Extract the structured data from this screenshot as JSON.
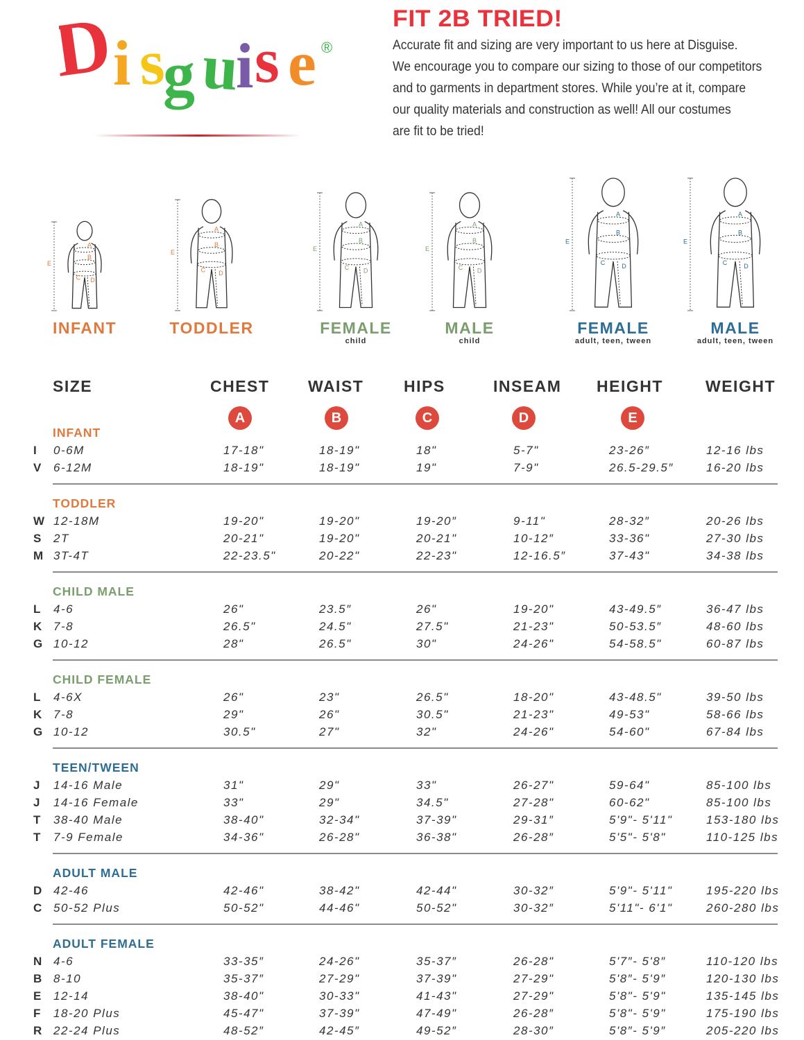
{
  "brand": {
    "logo_text": "Disguise",
    "registered": "®",
    "logo_letter_colors": [
      "#e8323c",
      "#f5a623",
      "#f5c518",
      "#3db54a",
      "#3db54a",
      "#7a5ba8",
      "#e8323c",
      "#f28c28"
    ]
  },
  "header": {
    "title": "FIT 2B TRIED!",
    "intro_lines": [
      "Accurate fit and sizing are very important to us here at Disguise.",
      "We encourage you to compare our sizing to those of our competitors",
      "and to garments in department stores. While you’re at it, compare",
      "our quality materials and construction as well! All our costumes",
      "are fit to be tried!"
    ]
  },
  "figures": [
    {
      "label": "INFANT",
      "sub": "",
      "color": "#e07a3c",
      "icon": "infant-figure"
    },
    {
      "label": "TODDLER",
      "sub": "",
      "color": "#e07a3c",
      "icon": "toddler-figure"
    },
    {
      "label": "FEMALE",
      "sub": "child",
      "color": "#7a9e6e",
      "icon": "child-female-figure"
    },
    {
      "label": "MALE",
      "sub": "child",
      "color": "#7a9e6e",
      "icon": "child-male-figure"
    },
    {
      "label": "FEMALE",
      "sub": "adult, teen, tween",
      "color": "#2e6e96",
      "icon": "adult-female-figure"
    },
    {
      "label": "MALE",
      "sub": "adult, teen, tween",
      "color": "#2e6e96",
      "icon": "adult-male-figure"
    }
  ],
  "columns": [
    "SIZE",
    "CHEST",
    "WAIST",
    "HIPS",
    "INSEAM",
    "HEIGHT",
    "WEIGHT"
  ],
  "badges": [
    "A",
    "B",
    "C",
    "D",
    "E"
  ],
  "badge_color": "#dd4a3d",
  "sections": [
    {
      "title": "INFANT",
      "color": "#e07a3c",
      "rows": [
        [
          "I",
          "0-6M",
          "17-18\"",
          "18-19\"",
          "18\"",
          "5-7\"",
          "23-26″",
          "12-16 lbs"
        ],
        [
          "V",
          "6-12M",
          "18-19\"",
          "18-19\"",
          "19\"",
          "7-9\"",
          "26.5-29.5″",
          "16-20 lbs"
        ]
      ]
    },
    {
      "title": "TODDLER",
      "color": "#e07a3c",
      "rows": [
        [
          "W",
          "12-18M",
          "19-20\"",
          "19-20\"",
          "19-20″",
          "9-11\"",
          "28-32″",
          "20-26 lbs"
        ],
        [
          "S",
          "2T",
          "20-21\"",
          "19-20\"",
          "20-21\"",
          "10-12″",
          "33-36\"",
          "27-30 lbs"
        ],
        [
          "M",
          "3T-4T",
          "22-23.5\"",
          "20-22\"",
          "22-23\"",
          "12-16.5″",
          "37-43\"",
          "34-38 lbs"
        ]
      ]
    },
    {
      "title": "CHILD MALE",
      "color": "#7a9e6e",
      "rows": [
        [
          "L",
          "4-6",
          " 26\"",
          " 23.5″",
          " 26\"",
          "19-20\"",
          "43-49.5″",
          "36-47 lbs"
        ],
        [
          "K",
          "7-8",
          " 26.5\"",
          " 24.5\"",
          " 27.5\"",
          "21-23\"",
          "50-53.5″",
          "48-60 lbs"
        ],
        [
          "G",
          "10-12",
          " 28\"",
          " 26.5\"",
          " 30\"",
          "24-26\"",
          "54-58.5\"",
          "60-87 lbs"
        ]
      ]
    },
    {
      "title": "CHILD FEMALE",
      "color": "#7a9e6e",
      "rows": [
        [
          "L",
          "4-6X",
          " 26\"",
          " 23\"",
          " 26.5\"",
          "18-20\"",
          "43-48.5\"",
          "39-50 lbs"
        ],
        [
          "K",
          "7-8",
          " 29\"",
          " 26\"",
          " 30.5\"",
          "21-23\"",
          "49-53\"",
          "58-66 lbs"
        ],
        [
          "G",
          "10-12",
          "30.5\"",
          " 27\"",
          " 32\"",
          "24-26\"",
          "54-60\"",
          "67-84 lbs"
        ]
      ]
    },
    {
      "title": "TEEN/TWEEN",
      "color": "#2e6e96",
      "rows": [
        [
          "J",
          "14-16 Male",
          " 31\"",
          " 29\"",
          " 33\"",
          "26-27\"",
          "59-64\"",
          "85-100 lbs"
        ],
        [
          "J",
          "14-16 Female",
          " 33\"",
          " 29\"",
          " 34.5\"",
          "27-28\"",
          "60-62\"",
          "85-100 lbs"
        ],
        [
          "T",
          "38-40 Male",
          "38-40\"",
          "32-34\"",
          "37-39\"",
          "29-31″",
          "5'9\"- 5'11\"",
          "153-180 lbs"
        ],
        [
          "T",
          "7-9 Female",
          "34-36\"",
          "26-28\"",
          "36-38\"",
          "26-28″",
          "5'5\"- 5'8\"",
          "110-125 lbs"
        ]
      ]
    },
    {
      "title": "ADULT MALE",
      "color": "#2e6e96",
      "rows": [
        [
          "D",
          "42-46",
          "42-46\"",
          "38-42\"",
          "42-44\"",
          "30-32″",
          "5'9\"- 5'11\"",
          "195-220 lbs"
        ],
        [
          "C",
          "50-52 Plus",
          "50-52\"",
          "44-46\"",
          "50-52\"",
          "30-32″",
          "5'11\"- 6'1\"",
          "260-280 lbs"
        ]
      ]
    },
    {
      "title": "ADULT FEMALE",
      "color": "#2e6e96",
      "rows": [
        [
          "N",
          "4-6",
          "33-35″",
          "24-26\"",
          "35-37″",
          "26-28\"",
          "5'7″- 5'8″",
          "110-120 lbs"
        ],
        [
          "B",
          "8-10",
          "35-37″",
          "27-29\"",
          "37-39\"",
          "27-29\"",
          "5'8″- 5'9″",
          "120-130 lbs"
        ],
        [
          "E",
          "12-14",
          "38-40\"",
          "30-33\"",
          "41-43\"",
          "27-29\"",
          "5'8\"- 5'9\"",
          "135-145 lbs"
        ],
        [
          "F",
          "18-20 Plus",
          "45-47\"",
          "37-39\"",
          "47-49\"",
          "26-28″",
          "5'8\"- 5'9\"",
          "175-190 lbs"
        ],
        [
          "R",
          "22-24 Plus",
          "48-52″",
          "42-45″",
          "49-52″",
          "28-30″",
          "5'8″- 5'9″",
          "205-220 lbs"
        ]
      ]
    }
  ]
}
